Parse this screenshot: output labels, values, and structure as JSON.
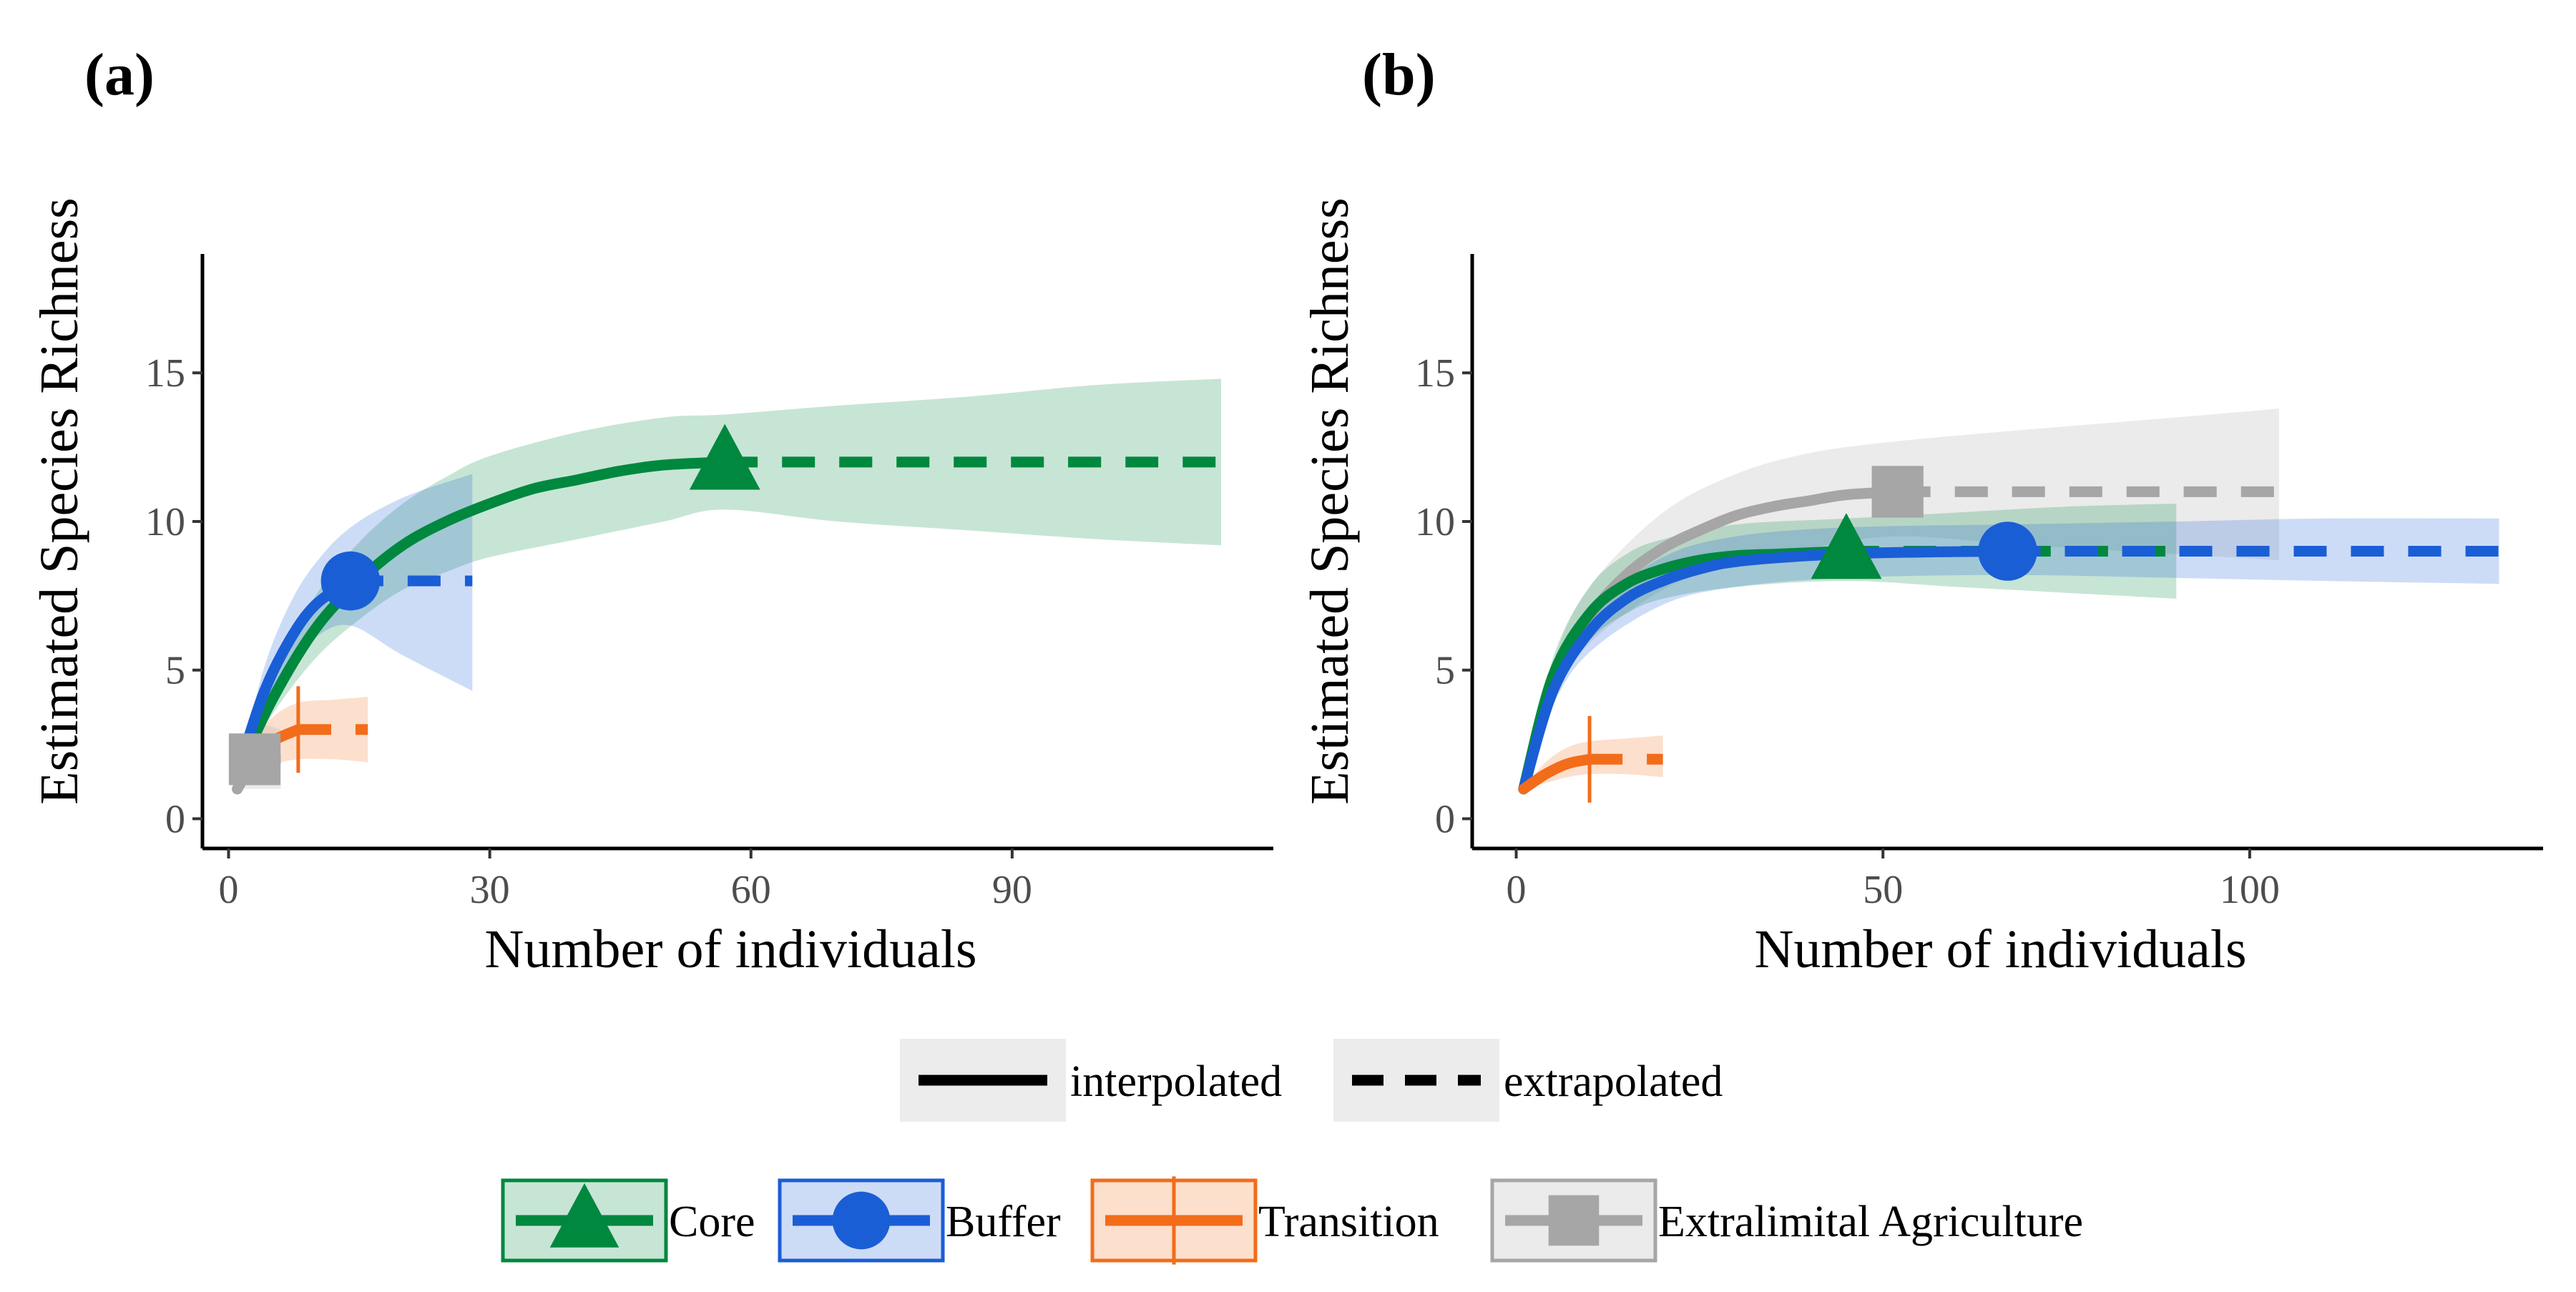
{
  "chart_data": [
    {
      "panel": "(a)",
      "type": "line",
      "xlabel": "Number of individuals",
      "ylabel": "Estimated Species Richness",
      "xlim": [
        -3,
        120
      ],
      "ylim": [
        -1,
        19
      ],
      "xticks": [
        0,
        30,
        60,
        90
      ],
      "yticks": [
        0,
        5,
        10,
        15
      ],
      "grid": false,
      "series": [
        {
          "name": "Core",
          "color": "#00883f",
          "marker": "triangle",
          "observed": [
            57,
            12
          ],
          "interpolated": [
            [
              1,
              1.5
            ],
            [
              5,
              4
            ],
            [
              10,
              6.4
            ],
            [
              15,
              8
            ],
            [
              20,
              9.2
            ],
            [
              25,
              10
            ],
            [
              30,
              10.6
            ],
            [
              35,
              11.1
            ],
            [
              40,
              11.4
            ],
            [
              45,
              11.7
            ],
            [
              50,
              11.9
            ],
            [
              57,
              12
            ]
          ],
          "extrapolated": [
            [
              57,
              12
            ],
            [
              65,
              12
            ],
            [
              75,
              12
            ],
            [
              85,
              12
            ],
            [
              95,
              12
            ],
            [
              105,
              12
            ],
            [
              114,
              12
            ]
          ],
          "band": [
            [
              1,
              1.5,
              1.5
            ],
            [
              5,
              3.5,
              4.5
            ],
            [
              10,
              5.4,
              7.5
            ],
            [
              15,
              6.7,
              9.3
            ],
            [
              20,
              7.7,
              10.6
            ],
            [
              25,
              8.3,
              11.5
            ],
            [
              30,
              8.8,
              12.2
            ],
            [
              40,
              9.4,
              13
            ],
            [
              50,
              10,
              13.5
            ],
            [
              57,
              10.4,
              13.6
            ],
            [
              70,
              10,
              13.9
            ],
            [
              85,
              9.7,
              14.2
            ],
            [
              100,
              9.4,
              14.6
            ],
            [
              114,
              9.2,
              14.8
            ]
          ]
        },
        {
          "name": "Buffer",
          "color": "#1a5ed6",
          "marker": "circle",
          "observed": [
            14,
            8
          ],
          "interpolated": [
            [
              1,
              1.5
            ],
            [
              4,
              4.2
            ],
            [
              7,
              6
            ],
            [
              10,
              7.2
            ],
            [
              14,
              8
            ]
          ],
          "extrapolated": [
            [
              14,
              8
            ],
            [
              20,
              8
            ],
            [
              28,
              8
            ]
          ],
          "band": [
            [
              1,
              1.5,
              1.5
            ],
            [
              4,
              3.5,
              5
            ],
            [
              7,
              5,
              7.2
            ],
            [
              10,
              6.1,
              8.6
            ],
            [
              14,
              6.5,
              9.8
            ],
            [
              20,
              5.5,
              10.8
            ],
            [
              28,
              4.3,
              11.6
            ]
          ]
        },
        {
          "name": "Transition",
          "color": "#f26c1a",
          "marker": "vline",
          "observed": [
            8,
            3
          ],
          "interpolated": [
            [
              1,
              1
            ],
            [
              3,
              2
            ],
            [
              5,
              2.6
            ],
            [
              8,
              3
            ]
          ],
          "extrapolated": [
            [
              8,
              3
            ],
            [
              12,
              3
            ],
            [
              16,
              3
            ]
          ],
          "band": [
            [
              1,
              1,
              1
            ],
            [
              3,
              1.4,
              2.6
            ],
            [
              5,
              1.8,
              3.4
            ],
            [
              8,
              2,
              3.9
            ],
            [
              12,
              2,
              4
            ],
            [
              16,
              1.9,
              4.1
            ]
          ]
        },
        {
          "name": "Extralimital Agriculture",
          "color": "#a6a6a6",
          "marker": "square",
          "observed": [
            3,
            2
          ],
          "interpolated": [
            [
              1,
              1
            ],
            [
              2,
              1.6
            ],
            [
              3,
              2
            ]
          ],
          "extrapolated": [
            [
              3,
              2
            ],
            [
              6,
              2
            ]
          ],
          "band": [
            [
              1,
              1,
              1
            ],
            [
              3,
              1,
              3
            ],
            [
              6,
              1,
              3
            ]
          ]
        }
      ]
    },
    {
      "panel": "(b)",
      "type": "line",
      "xlabel": "Number of individuals",
      "ylabel": "Estimated Species Richness",
      "xlim": [
        -6,
        140
      ],
      "ylim": [
        -1,
        19
      ],
      "xticks": [
        0,
        50,
        100
      ],
      "yticks": [
        0,
        5,
        10,
        15
      ],
      "grid": false,
      "series": [
        {
          "name": "Extralimital Agriculture",
          "color": "#a6a6a6",
          "marker": "square",
          "observed": [
            52,
            11
          ],
          "interpolated": [
            [
              1,
              1
            ],
            [
              5,
              4.5
            ],
            [
              10,
              6.8
            ],
            [
              15,
              8.2
            ],
            [
              20,
              9.1
            ],
            [
              25,
              9.7
            ],
            [
              30,
              10.2
            ],
            [
              35,
              10.5
            ],
            [
              40,
              10.7
            ],
            [
              45,
              10.9
            ],
            [
              52,
              11
            ]
          ],
          "extrapolated": [
            [
              52,
              11
            ],
            [
              65,
              11
            ],
            [
              80,
              11
            ],
            [
              92,
              11
            ],
            [
              104,
              11
            ]
          ],
          "band": [
            [
              1,
              1,
              1
            ],
            [
              5,
              4,
              5.2
            ],
            [
              10,
              5.9,
              7.8
            ],
            [
              20,
              7.7,
              10.3
            ],
            [
              30,
              8.6,
              11.6
            ],
            [
              40,
              9.1,
              12.3
            ],
            [
              52,
              9.5,
              12.7
            ],
            [
              70,
              9.2,
              13.1
            ],
            [
              90,
              8.9,
              13.5
            ],
            [
              104,
              8.7,
              13.8
            ]
          ]
        },
        {
          "name": "Core",
          "color": "#00883f",
          "marker": "triangle",
          "observed": [
            45,
            9
          ],
          "interpolated": [
            [
              1,
              1
            ],
            [
              5,
              4.8
            ],
            [
              10,
              6.9
            ],
            [
              15,
              7.9
            ],
            [
              20,
              8.4
            ],
            [
              25,
              8.7
            ],
            [
              30,
              8.85
            ],
            [
              35,
              8.9
            ],
            [
              40,
              8.95
            ],
            [
              45,
              9
            ]
          ],
          "extrapolated": [
            [
              45,
              9
            ],
            [
              55,
              9
            ],
            [
              65,
              9
            ],
            [
              75,
              9
            ],
            [
              90,
              9
            ]
          ],
          "band": [
            [
              1,
              1,
              1
            ],
            [
              5,
              4.2,
              5.4
            ],
            [
              10,
              6,
              7.8
            ],
            [
              15,
              6.9,
              8.9
            ],
            [
              20,
              7.4,
              9.4
            ],
            [
              30,
              7.8,
              9.9
            ],
            [
              45,
              8,
              10.1
            ],
            [
              60,
              7.8,
              10.3
            ],
            [
              75,
              7.6,
              10.5
            ],
            [
              90,
              7.4,
              10.6
            ]
          ]
        },
        {
          "name": "Buffer",
          "color": "#1a5ed6",
          "marker": "circle",
          "observed": [
            67,
            9
          ],
          "interpolated": [
            [
              1,
              1
            ],
            [
              5,
              4.3
            ],
            [
              10,
              6.3
            ],
            [
              15,
              7.4
            ],
            [
              20,
              8
            ],
            [
              25,
              8.4
            ],
            [
              30,
              8.65
            ],
            [
              40,
              8.85
            ],
            [
              50,
              8.95
            ],
            [
              67,
              9
            ]
          ],
          "extrapolated": [
            [
              67,
              9
            ],
            [
              85,
              9
            ],
            [
              100,
              9
            ],
            [
              115,
              9
            ],
            [
              134,
              9
            ]
          ],
          "band": [
            [
              1,
              1,
              1
            ],
            [
              5,
              3.8,
              4.9
            ],
            [
              10,
              5.6,
              7
            ],
            [
              20,
              7.2,
              8.8
            ],
            [
              30,
              7.8,
              9.5
            ],
            [
              45,
              8.1,
              9.8
            ],
            [
              67,
              8.2,
              9.9
            ],
            [
              90,
              8.1,
              10
            ],
            [
              110,
              8,
              10.1
            ],
            [
              134,
              7.9,
              10.1
            ]
          ]
        },
        {
          "name": "Transition",
          "color": "#f26c1a",
          "marker": "vline",
          "observed": [
            10,
            2
          ],
          "interpolated": [
            [
              1,
              1
            ],
            [
              4,
              1.5
            ],
            [
              7,
              1.85
            ],
            [
              10,
              2
            ]
          ],
          "extrapolated": [
            [
              10,
              2
            ],
            [
              15,
              2
            ],
            [
              20,
              2
            ]
          ],
          "band": [
            [
              1,
              1,
              1
            ],
            [
              4,
              1.2,
              1.9
            ],
            [
              7,
              1.4,
              2.4
            ],
            [
              10,
              1.5,
              2.6
            ],
            [
              15,
              1.5,
              2.7
            ],
            [
              20,
              1.4,
              2.8
            ]
          ]
        }
      ]
    }
  ],
  "legend": {
    "linetype": [
      {
        "label": "interpolated",
        "style": "solid"
      },
      {
        "label": "extrapolated",
        "style": "dashed"
      }
    ],
    "sites": [
      {
        "label": "Core",
        "color": "#00883f",
        "marker": "triangle"
      },
      {
        "label": "Buffer",
        "color": "#1a5ed6",
        "marker": "circle"
      },
      {
        "label": "Transition",
        "color": "#f26c1a",
        "marker": "vline"
      },
      {
        "label": "Extralimital Agriculture",
        "color": "#a6a6a6",
        "marker": "square"
      }
    ]
  }
}
